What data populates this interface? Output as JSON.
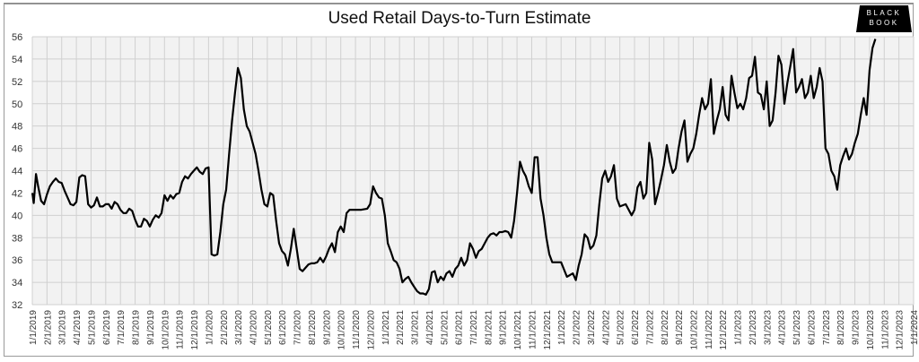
{
  "header": {
    "title": "Used Retail Days-to-Turn Estimate",
    "logo_line1": "BLACK",
    "logo_line2": "BOOK"
  },
  "colors": {
    "line": "#000000",
    "plot_bg": "#f2f2f2",
    "grid": "#d0d0d0",
    "logo_bg": "#000000"
  },
  "chart_data": {
    "type": "line",
    "title": "Used Retail Days-to-Turn Estimate",
    "xlabel": "",
    "ylabel": "",
    "ylim": [
      32,
      56
    ],
    "yticks": [
      32,
      34,
      36,
      38,
      40,
      42,
      44,
      46,
      48,
      50,
      52,
      54,
      56
    ],
    "grid": true,
    "legend": "none",
    "categories": [
      "1/1/2019",
      "2/1/2019",
      "3/1/2019",
      "4/1/2019",
      "5/1/2019",
      "6/1/2019",
      "7/1/2019",
      "8/1/2019",
      "9/1/2019",
      "10/1/2019",
      "11/1/2019",
      "12/1/2019",
      "1/1/2020",
      "2/1/2020",
      "3/1/2020",
      "4/1/2020",
      "5/1/2020",
      "6/1/2020",
      "7/1/2020",
      "8/1/2020",
      "9/1/2020",
      "10/1/2020",
      "11/1/2020",
      "12/1/2020",
      "1/1/2021",
      "2/1/2021",
      "3/1/2021",
      "4/1/2021",
      "5/1/2021",
      "6/1/2021",
      "7/1/2021",
      "8/1/2021",
      "9/1/2021",
      "10/1/2021",
      "11/1/2021",
      "12/1/2021",
      "1/1/2022",
      "2/1/2022",
      "3/1/2022",
      "4/1/2022",
      "5/1/2022",
      "6/1/2022",
      "7/1/2022",
      "8/1/2022",
      "9/1/2022",
      "10/1/2022",
      "11/1/2022",
      "12/1/2022",
      "1/1/2023",
      "2/1/2023",
      "3/1/2023",
      "4/1/2023",
      "5/1/2023",
      "6/1/2023",
      "7/1/2023",
      "8/1/2023",
      "9/1/2023",
      "10/1/2023",
      "11/1/2023",
      "12/1/2023",
      "1/1/2024"
    ],
    "series": [
      {
        "name": "Used Retail Days-to-Turn",
        "x_month_index": [
          0,
          0.1,
          0.25,
          0.4,
          0.6,
          0.8,
          1.0,
          1.2,
          1.4,
          1.6,
          1.8,
          2.0,
          2.2,
          2.4,
          2.6,
          2.8,
          3.0,
          3.2,
          3.4,
          3.6,
          3.8,
          4.0,
          4.2,
          4.4,
          4.6,
          4.8,
          5.0,
          5.2,
          5.4,
          5.6,
          5.8,
          6.0,
          6.2,
          6.4,
          6.6,
          6.8,
          7.0,
          7.2,
          7.4,
          7.6,
          7.8,
          8.0,
          8.2,
          8.4,
          8.6,
          8.8,
          9.0,
          9.2,
          9.4,
          9.6,
          9.8,
          10.0,
          10.2,
          10.4,
          10.6,
          10.8,
          11.0,
          11.2,
          11.4,
          11.6,
          11.8,
          12.0,
          12.2,
          12.4,
          12.6,
          12.8,
          13.0,
          13.2,
          13.4,
          13.6,
          13.8,
          14.0,
          14.2,
          14.4,
          14.6,
          14.8,
          15.0,
          15.2,
          15.4,
          15.6,
          15.8,
          16.0,
          16.2,
          16.4,
          16.6,
          16.8,
          17.0,
          17.2,
          17.4,
          17.6,
          17.8,
          18.0,
          18.2,
          18.4,
          18.6,
          18.8,
          19.0,
          19.2,
          19.4,
          19.6,
          19.8,
          20.0,
          20.2,
          20.4,
          20.6,
          20.8,
          21.0,
          21.2,
          21.4,
          21.6,
          21.8,
          22.0,
          22.4,
          22.8,
          23.0,
          23.2,
          23.4,
          23.6,
          23.8,
          24.0,
          24.2,
          24.4,
          24.6,
          24.8,
          25.0,
          25.2,
          25.4,
          25.6,
          25.8,
          26.0,
          26.2,
          26.4,
          26.6,
          26.8,
          27.0,
          27.2,
          27.4,
          27.6,
          27.8,
          28.0,
          28.2,
          28.4,
          28.6,
          28.8,
          29.0,
          29.2,
          29.4,
          29.6,
          29.8,
          30.0,
          30.2,
          30.4,
          30.6,
          30.8,
          31.0,
          31.2,
          31.4,
          31.6,
          31.8,
          32.0,
          32.2,
          32.4,
          32.6,
          32.8,
          33.0,
          33.2,
          33.4,
          33.6,
          33.8,
          34.0,
          34.2,
          34.4,
          34.6,
          34.8,
          35.0,
          35.2,
          35.4,
          35.6,
          35.8,
          36.0,
          36.4,
          36.8,
          37.0,
          37.2,
          37.4,
          37.6,
          37.8,
          38.0,
          38.2,
          38.4,
          38.6,
          38.8,
          39.0,
          39.2,
          39.4,
          39.6,
          39.8,
          40.0,
          40.4,
          40.8,
          41.0,
          41.2,
          41.4,
          41.6,
          41.8,
          42.0,
          42.2,
          42.4,
          42.6,
          42.8,
          43.0,
          43.2,
          43.4,
          43.6,
          43.8,
          44.0,
          44.2,
          44.4,
          44.6,
          44.8,
          45.0,
          45.2,
          45.4,
          45.6,
          45.8,
          46.0,
          46.2,
          46.4,
          46.6,
          46.8,
          47.0,
          47.2,
          47.4,
          47.6,
          47.8,
          48.0,
          48.2,
          48.4,
          48.6,
          48.8,
          49.0,
          49.2,
          49.4,
          49.6,
          49.8,
          50.0,
          50.2,
          50.4,
          50.6,
          50.8,
          51.0,
          51.2,
          51.4,
          51.6,
          51.8,
          52.0,
          52.2,
          52.4,
          52.6,
          52.8,
          53.0,
          53.2,
          53.4,
          53.6,
          53.8,
          54.0,
          54.2,
          54.4,
          54.6,
          54.8,
          55.0,
          55.2,
          55.4,
          55.6,
          55.8,
          56.0,
          56.2,
          56.4,
          56.6,
          56.8,
          57.0,
          57.2,
          57.4,
          57.6,
          57.8,
          58.0,
          58.2,
          58.4,
          58.6,
          58.8,
          59.0
        ],
        "values": [
          42.0,
          41.1,
          43.7,
          42.6,
          41.3,
          41.0,
          41.9,
          42.6,
          43.0,
          43.3,
          43.0,
          42.9,
          42.2,
          41.6,
          41.0,
          40.9,
          41.2,
          43.4,
          43.6,
          43.5,
          41.0,
          40.7,
          40.9,
          41.6,
          40.8,
          40.8,
          41.0,
          41.0,
          40.6,
          41.2,
          41.0,
          40.5,
          40.2,
          40.2,
          40.6,
          40.4,
          39.6,
          39.0,
          39.0,
          39.7,
          39.5,
          39.0,
          39.6,
          40.0,
          39.8,
          40.2,
          41.8,
          41.3,
          41.8,
          41.5,
          41.9,
          42.0,
          43.0,
          43.5,
          43.3,
          43.7,
          44.0,
          44.3,
          43.9,
          43.7,
          44.2,
          44.3,
          36.5,
          36.4,
          36.5,
          38.5,
          41.0,
          42.3,
          45.5,
          48.5,
          51.0,
          53.2,
          52.3,
          49.5,
          48.0,
          47.5,
          46.5,
          45.5,
          44.0,
          42.3,
          41.0,
          40.8,
          42.0,
          41.8,
          39.5,
          37.5,
          36.8,
          36.5,
          35.5,
          37.0,
          38.8,
          37.0,
          35.2,
          35.0,
          35.3,
          35.6,
          35.7,
          35.7,
          35.8,
          36.2,
          35.8,
          36.3,
          37.0,
          37.5,
          36.7,
          38.5,
          39.0,
          38.5,
          40.2,
          40.5,
          40.5,
          40.5,
          40.5,
          40.6,
          41.0,
          42.6,
          42.0,
          41.6,
          41.5,
          40.0,
          37.5,
          36.8,
          36.0,
          35.8,
          35.2,
          34.0,
          34.3,
          34.5,
          34.0,
          33.6,
          33.2,
          33.0,
          33.0,
          32.9,
          33.4,
          34.9,
          35.0,
          34.0,
          34.5,
          34.2,
          34.8,
          35.0,
          34.5,
          35.2,
          35.5,
          36.2,
          35.5,
          36.0,
          37.5,
          37.0,
          36.2,
          36.8,
          37.0,
          37.5,
          38.0,
          38.3,
          38.4,
          38.2,
          38.5,
          38.5,
          38.6,
          38.5,
          38.0,
          39.5,
          42.0,
          44.8,
          44.0,
          43.5,
          42.6,
          42.0,
          45.2,
          45.2,
          41.5,
          40.0,
          38.0,
          36.5,
          35.8,
          35.8,
          35.8,
          35.8,
          34.5,
          34.8,
          34.2,
          35.5,
          36.5,
          38.3,
          38.0,
          37.0,
          37.3,
          38.2,
          41.0,
          43.3,
          44.0,
          43.0,
          43.5,
          44.5,
          41.5,
          40.8,
          41.0,
          40.0,
          40.5,
          42.5,
          43.0,
          41.5,
          42.0,
          46.5,
          45.0,
          41.0,
          42.0,
          43.2,
          44.5,
          46.3,
          44.8,
          43.8,
          44.2,
          46.0,
          47.5,
          48.5,
          44.8,
          45.5,
          46.0,
          47.3,
          49.0,
          50.5,
          49.5,
          50.0,
          52.2,
          47.3,
          48.5,
          49.5,
          51.5,
          49.0,
          48.5,
          52.5,
          51.0,
          49.6,
          50.0,
          49.5,
          50.5,
          52.3,
          52.5,
          54.2,
          51.0,
          50.8,
          49.5,
          52.0,
          48.0,
          48.5,
          51.0,
          54.3,
          53.5,
          50.0,
          51.8,
          53.3,
          54.9,
          51.0,
          51.5,
          52.2,
          50.5,
          51.0,
          52.5,
          50.5,
          51.5,
          53.2,
          52.0,
          46.0,
          45.5,
          44.0,
          43.5,
          42.3,
          44.5,
          45.3,
          46.0,
          45.0,
          45.5,
          46.5,
          47.3,
          49.0,
          50.5,
          49.0,
          53.0,
          55.0,
          55.8
        ]
      }
    ]
  }
}
